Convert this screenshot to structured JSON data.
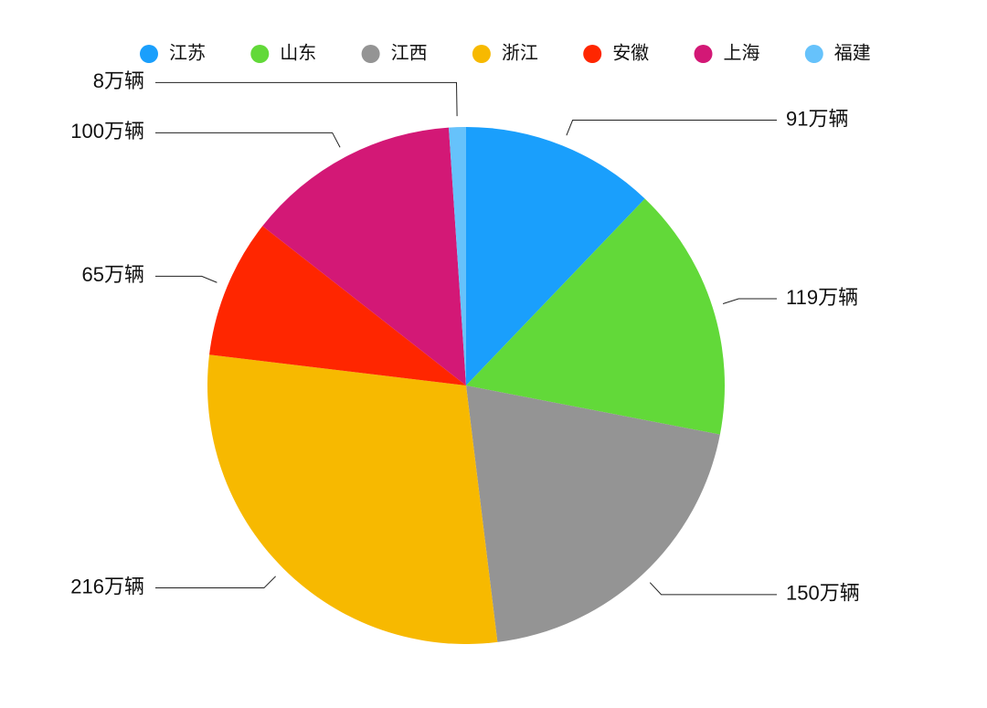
{
  "chart_data": {
    "type": "pie",
    "categories": [
      "江苏",
      "山东",
      "江西",
      "浙江",
      "安徽",
      "上海",
      "福建"
    ],
    "values": [
      91,
      119,
      150,
      216,
      65,
      100,
      8
    ],
    "value_labels": [
      "91万辆",
      "119万辆",
      "150万辆",
      "216万辆",
      "65万辆",
      "100万辆",
      "8万辆"
    ],
    "colors": [
      "#1a9ffc",
      "#62d939",
      "#949494",
      "#f7b900",
      "#ff2600",
      "#d31876",
      "#66c2fb"
    ],
    "legend": "top"
  }
}
